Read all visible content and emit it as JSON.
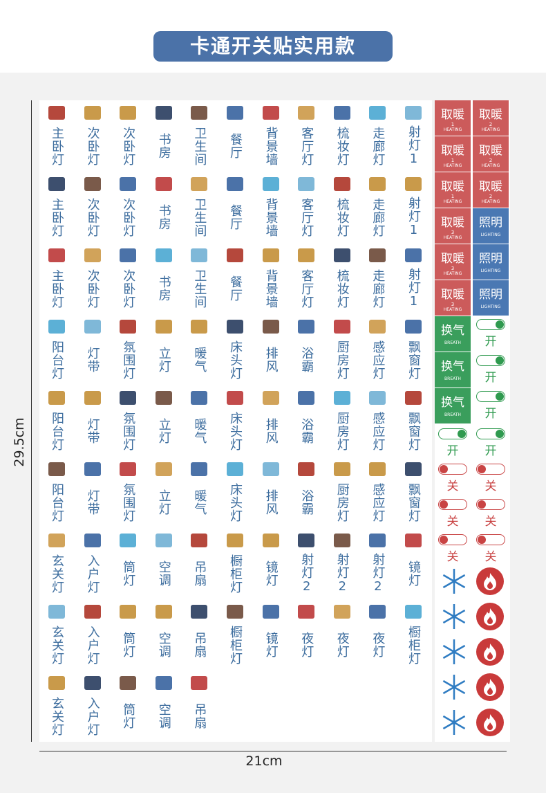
{
  "header": {
    "title": "卡通开关贴实用款"
  },
  "dimensions": {
    "height": "29.5cm",
    "width": "21cm"
  },
  "grid": {
    "rows": [
      [
        "主卧灯",
        "次卧灯",
        "次卧灯",
        "书房",
        "卫生间",
        "餐厅",
        "背景墙",
        "客厅灯",
        "梳妆灯",
        "走廊灯",
        "射灯1"
      ],
      [
        "主卧灯",
        "次卧灯",
        "次卧灯",
        "书房",
        "卫生间",
        "餐厅",
        "背景墙",
        "客厅灯",
        "梳妆灯",
        "走廊灯",
        "射灯1"
      ],
      [
        "主卧灯",
        "次卧灯",
        "次卧灯",
        "书房",
        "卫生间",
        "餐厅",
        "背景墙",
        "客厅灯",
        "梳妆灯",
        "走廊灯",
        "射灯1"
      ],
      [
        "阳台灯",
        "灯带",
        "氛围灯",
        "立灯",
        "暖气",
        "床头灯",
        "排风",
        "浴霸",
        "厨房灯",
        "感应灯",
        "飘窗灯"
      ],
      [
        "阳台灯",
        "灯带",
        "氛围灯",
        "立灯",
        "暖气",
        "床头灯",
        "排风",
        "浴霸",
        "厨房灯",
        "感应灯",
        "飘窗灯"
      ],
      [
        "阳台灯",
        "灯带",
        "氛围灯",
        "立灯",
        "暖气",
        "床头灯",
        "排风",
        "浴霸",
        "厨房灯",
        "感应灯",
        "飘窗灯"
      ],
      [
        "玄关灯",
        "入户灯",
        "筒灯",
        "空调",
        "吊扇",
        "橱柜灯",
        "镜灯",
        "射灯2",
        "射灯2",
        "射灯2",
        "镜灯"
      ],
      [
        "玄关灯",
        "入户灯",
        "筒灯",
        "空调",
        "吊扇",
        "橱柜灯",
        "镜灯",
        "夜灯",
        "夜灯",
        "夜灯",
        "橱柜灯"
      ],
      [
        "玄关灯",
        "入户灯",
        "筒灯",
        "空调",
        "吊扇"
      ]
    ]
  },
  "panel": {
    "tags": [
      [
        {
          "label": "取暖",
          "num": "1",
          "sub": "HEATING"
        },
        {
          "label": "取暖",
          "num": "2",
          "sub": "HEATING"
        }
      ],
      [
        {
          "label": "取暖",
          "num": "1",
          "sub": "HEATING"
        },
        {
          "label": "取暖",
          "num": "2",
          "sub": "HEATING"
        }
      ],
      [
        {
          "label": "取暖",
          "num": "1",
          "sub": "HEATING"
        },
        {
          "label": "取暖",
          "num": "2",
          "sub": "HEATING"
        }
      ],
      [
        {
          "label": "取暖",
          "num": "3",
          "sub": "HEATING"
        },
        {
          "label": "照明",
          "sub": "LIGHTING"
        }
      ],
      [
        {
          "label": "取暖",
          "num": "3",
          "sub": "HEATING"
        },
        {
          "label": "照明",
          "sub": "LIGHTING"
        }
      ],
      [
        {
          "label": "取暖",
          "num": "3",
          "sub": "HEATING"
        },
        {
          "label": "照明",
          "sub": "LIGHTING"
        }
      ]
    ],
    "breath": [
      [
        {
          "label": "换气",
          "sub": "BREATH"
        },
        {
          "label": "开"
        }
      ],
      [
        {
          "label": "换气",
          "sub": "BREATH"
        },
        {
          "label": "开"
        }
      ],
      [
        {
          "label": "换气",
          "sub": "BREATH"
        },
        {
          "label": "开"
        }
      ]
    ],
    "switches": [
      [
        "开",
        "开"
      ],
      [
        "关",
        "关"
      ],
      [
        "关",
        "关"
      ],
      [
        "关",
        "关"
      ]
    ]
  }
}
